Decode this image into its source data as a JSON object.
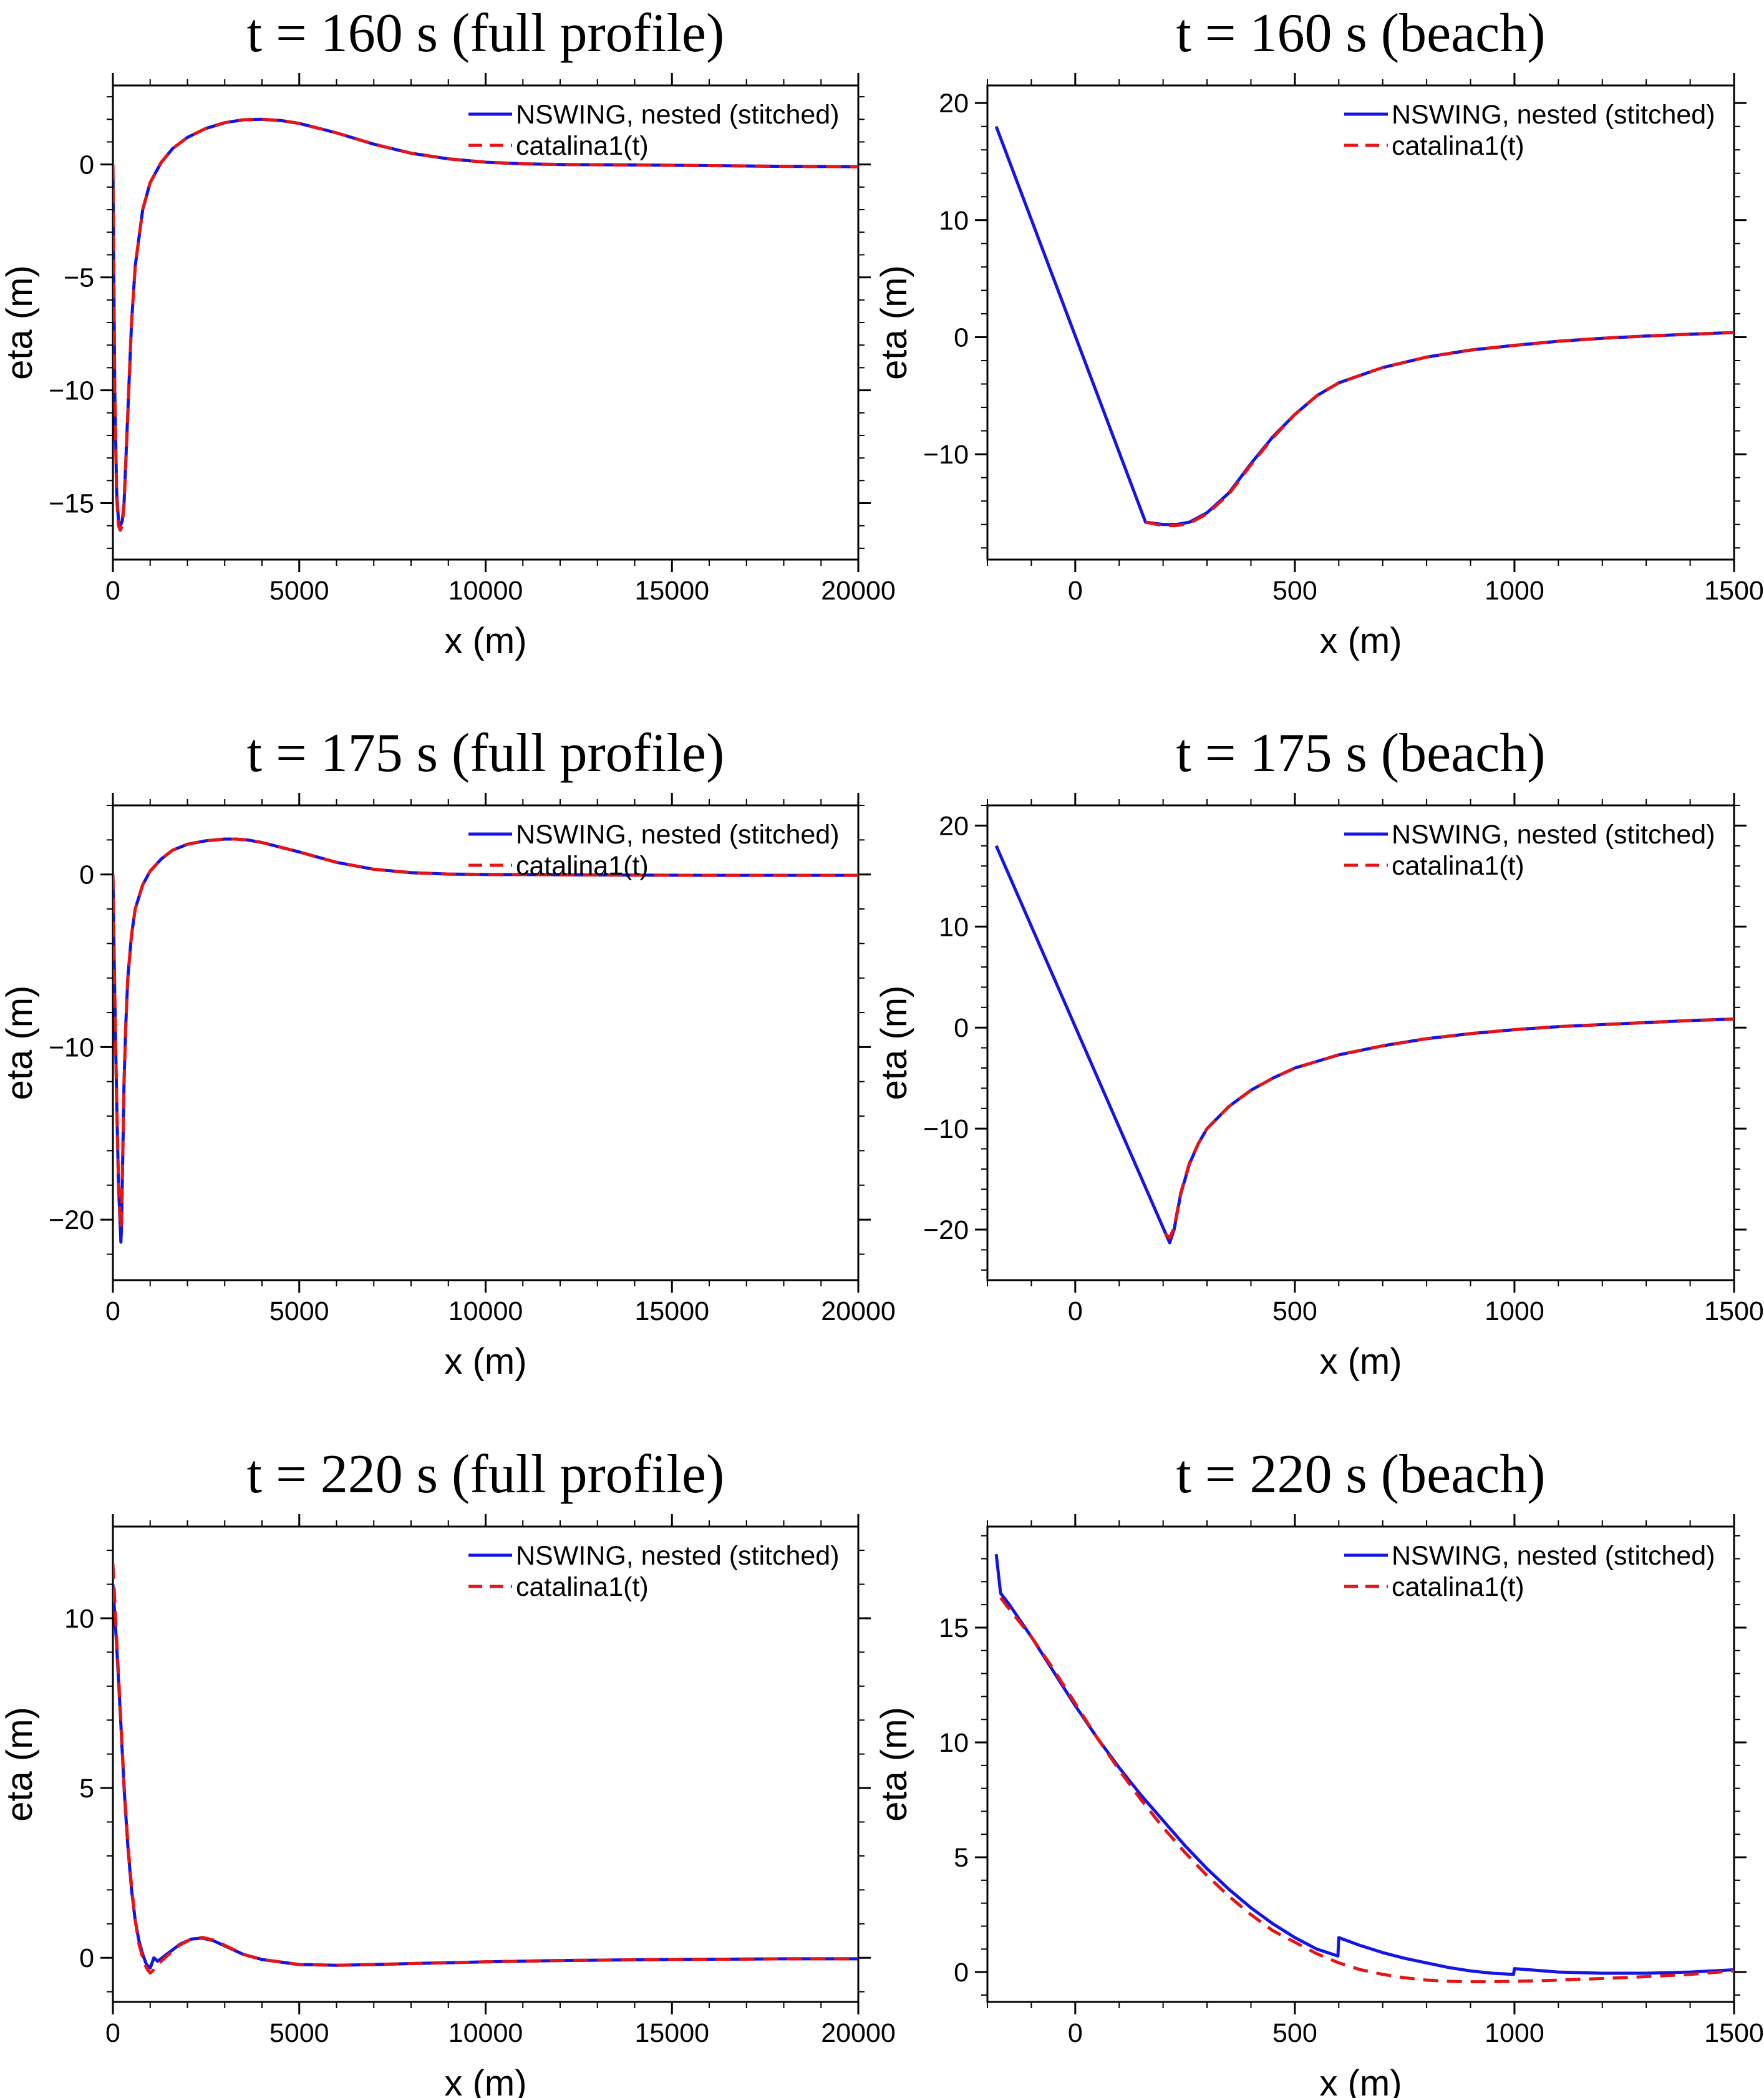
{
  "figure": {
    "rows": 3,
    "cols": 2
  },
  "colors": {
    "nswing": "#1414e6",
    "catalina": "#e61414",
    "axes": "#000000"
  },
  "chart_data": [
    {
      "type": "line",
      "title": "t = 160 s (full profile)",
      "xlabel": "x (m)",
      "ylabel": "eta (m)",
      "xlim": [
        0,
        20000
      ],
      "ylim": [
        -17.5,
        3.5
      ],
      "xticks": [
        0,
        5000,
        10000,
        15000,
        20000
      ],
      "xtick_labels": [
        "0",
        "5000",
        "10000",
        "15000",
        "20000"
      ],
      "xminor": 1000,
      "yticks": [
        0,
        -5,
        -10,
        -15
      ],
      "ytick_labels": [
        "0",
        "−5",
        "−10",
        "−15"
      ],
      "yminor": 1,
      "grid": false,
      "legend": "top-right",
      "series": [
        {
          "name": "NSWING, nested (stitched)",
          "style": "solid",
          "x": [
            0,
            50,
            100,
            150,
            200,
            250,
            300,
            400,
            500,
            600,
            800,
            1000,
            1300,
            1600,
            2000,
            2500,
            3000,
            3500,
            4000,
            4500,
            5000,
            6000,
            7000,
            8000,
            9000,
            10000,
            11000,
            12000,
            14000,
            16000,
            18000,
            20000
          ],
          "y": [
            0,
            -10,
            -14.5,
            -15.8,
            -16,
            -15.8,
            -15,
            -11,
            -7,
            -4.5,
            -2,
            -0.8,
            0.1,
            0.7,
            1.2,
            1.6,
            1.85,
            1.98,
            2.0,
            1.95,
            1.82,
            1.4,
            0.9,
            0.5,
            0.25,
            0.1,
            0.03,
            0,
            -0.02,
            -0.05,
            -0.08,
            -0.1
          ]
        },
        {
          "name": "catalina1(t)",
          "style": "dashed",
          "x": [
            0,
            50,
            100,
            150,
            200,
            250,
            300,
            400,
            500,
            600,
            800,
            1000,
            1300,
            1600,
            2000,
            2500,
            3000,
            3500,
            4000,
            4500,
            5000,
            6000,
            7000,
            8000,
            9000,
            10000,
            11000,
            12000,
            14000,
            16000,
            18000,
            20000
          ],
          "y": [
            0,
            -10.2,
            -14.7,
            -16,
            -16.2,
            -16,
            -15.1,
            -11.1,
            -7,
            -4.5,
            -2,
            -0.8,
            0.1,
            0.7,
            1.2,
            1.6,
            1.85,
            1.98,
            2.0,
            1.95,
            1.82,
            1.4,
            0.9,
            0.5,
            0.25,
            0.1,
            0.03,
            0,
            -0.02,
            -0.05,
            -0.08,
            -0.1
          ]
        }
      ]
    },
    {
      "type": "line",
      "title": "t = 160 s (beach)",
      "xlabel": "x (m)",
      "ylabel": "eta (m)",
      "xlim": [
        -200,
        1500
      ],
      "ylim": [
        -19,
        21.5
      ],
      "xticks": [
        0,
        500,
        1000,
        1500
      ],
      "xtick_labels": [
        "0",
        "500",
        "1000",
        "1500"
      ],
      "xminor": 100,
      "yticks": [
        20,
        10,
        0,
        -10
      ],
      "ytick_labels": [
        "20",
        "10",
        "0",
        "−10"
      ],
      "yminor": 2,
      "grid": false,
      "legend": "top-right",
      "series": [
        {
          "name": "NSWING, nested (stitched)",
          "style": "solid",
          "x": [
            -180,
            160,
            200,
            230,
            260,
            300,
            350,
            400,
            450,
            500,
            550,
            600,
            700,
            800,
            900,
            1000,
            1100,
            1200,
            1300,
            1400,
            1500
          ],
          "y": [
            18,
            -15.8,
            -16,
            -16,
            -15.8,
            -15,
            -13.3,
            -10.8,
            -8.5,
            -6.6,
            -5,
            -3.9,
            -2.6,
            -1.7,
            -1.1,
            -0.7,
            -0.35,
            -0.1,
            0.1,
            0.25,
            0.4
          ]
        },
        {
          "name": "catalina1(t)",
          "style": "dashed",
          "x": [
            160,
            200,
            230,
            260,
            300,
            350,
            400,
            450,
            500,
            550,
            600,
            700,
            800,
            900,
            1000,
            1100,
            1200,
            1300,
            1400,
            1500
          ],
          "y": [
            -15.8,
            -16.1,
            -16.1,
            -15.9,
            -15.1,
            -13.4,
            -10.9,
            -8.6,
            -6.6,
            -5,
            -3.9,
            -2.6,
            -1.7,
            -1.1,
            -0.7,
            -0.35,
            -0.1,
            0.1,
            0.25,
            0.4
          ]
        }
      ]
    },
    {
      "type": "line",
      "title": "t = 175 s (full profile)",
      "xlabel": "x (m)",
      "ylabel": "eta (m)",
      "xlim": [
        0,
        20000
      ],
      "ylim": [
        -23.5,
        4
      ],
      "xticks": [
        0,
        5000,
        10000,
        15000,
        20000
      ],
      "xtick_labels": [
        "0",
        "5000",
        "10000",
        "15000",
        "20000"
      ],
      "xminor": 1000,
      "yticks": [
        0,
        -10,
        -20
      ],
      "ytick_labels": [
        "0",
        "−10",
        "−20"
      ],
      "yminor": 2,
      "grid": false,
      "legend": "top-right",
      "series": [
        {
          "name": "NSWING, nested (stitched)",
          "style": "solid",
          "x": [
            0,
            50,
            100,
            150,
            200,
            215,
            230,
            260,
            300,
            350,
            400,
            500,
            600,
            800,
            1000,
            1300,
            1600,
            2000,
            2500,
            3000,
            3300,
            3600,
            4000,
            5000,
            6000,
            7000,
            8000,
            9000,
            10000,
            12000,
            14000,
            16000,
            18000,
            20000
          ],
          "y": [
            0,
            -7,
            -13,
            -18,
            -20.5,
            -21.3,
            -20.5,
            -17,
            -12,
            -8.5,
            -6,
            -3.5,
            -2,
            -0.6,
            0.2,
            0.9,
            1.4,
            1.75,
            1.95,
            2.05,
            2.05,
            2.0,
            1.85,
            1.3,
            0.7,
            0.3,
            0.1,
            0.02,
            0,
            -0.02,
            -0.04,
            -0.05,
            -0.05,
            -0.05
          ]
        },
        {
          "name": "catalina1(t)",
          "style": "dashed",
          "x": [
            0,
            50,
            100,
            150,
            200,
            215,
            230,
            260,
            300,
            350,
            400,
            500,
            600,
            800,
            1000,
            1300,
            1600,
            2000,
            2500,
            3000,
            3300,
            3600,
            4000,
            5000,
            6000,
            7000,
            8000,
            9000,
            10000,
            12000,
            14000,
            16000,
            18000,
            20000
          ],
          "y": [
            0,
            -7,
            -13,
            -18,
            -20,
            -20.5,
            -19.8,
            -16.8,
            -12,
            -8.5,
            -6,
            -3.5,
            -2,
            -0.6,
            0.2,
            0.9,
            1.4,
            1.75,
            1.95,
            2.05,
            2.05,
            2.0,
            1.85,
            1.3,
            0.7,
            0.3,
            0.1,
            0.02,
            0,
            -0.02,
            -0.04,
            -0.05,
            -0.05,
            -0.05
          ]
        }
      ]
    },
    {
      "type": "line",
      "title": "t = 175 s (beach)",
      "xlabel": "x (m)",
      "ylabel": "eta (m)",
      "xlim": [
        -200,
        1500
      ],
      "ylim": [
        -25,
        22
      ],
      "xticks": [
        0,
        500,
        1000,
        1500
      ],
      "xtick_labels": [
        "0",
        "500",
        "1000",
        "1500"
      ],
      "xminor": 100,
      "yticks": [
        20,
        10,
        0,
        -10,
        -20
      ],
      "ytick_labels": [
        "20",
        "10",
        "0",
        "−10",
        "−20"
      ],
      "yminor": 2,
      "grid": false,
      "legend": "top-right",
      "series": [
        {
          "name": "NSWING, nested (stitched)",
          "style": "solid",
          "x": [
            -180,
            215,
            225,
            240,
            260,
            280,
            300,
            350,
            400,
            450,
            500,
            600,
            700,
            800,
            900,
            1000,
            1100,
            1200,
            1300,
            1400,
            1500
          ],
          "y": [
            18,
            -21.3,
            -20,
            -16.5,
            -13.5,
            -11.5,
            -10,
            -7.8,
            -6.2,
            -5,
            -4,
            -2.7,
            -1.8,
            -1.1,
            -0.6,
            -0.2,
            0.1,
            0.3,
            0.5,
            0.7,
            0.85
          ]
        },
        {
          "name": "catalina1(t)",
          "style": "dashed",
          "x": [
            205,
            215,
            225,
            240,
            260,
            280,
            300,
            350,
            400,
            450,
            500,
            600,
            700,
            800,
            900,
            1000,
            1100,
            1200,
            1300,
            1400,
            1500
          ],
          "y": [
            -20.4,
            -20.8,
            -19.8,
            -16.4,
            -13.4,
            -11.5,
            -10,
            -7.8,
            -6.2,
            -5,
            -4,
            -2.7,
            -1.8,
            -1.1,
            -0.6,
            -0.2,
            0.1,
            0.3,
            0.5,
            0.7,
            0.85
          ]
        }
      ]
    },
    {
      "type": "line",
      "title": "t = 220 s (full profile)",
      "xlabel": "x (m)",
      "ylabel": "eta (m)",
      "xlim": [
        0,
        20000
      ],
      "ylim": [
        -1.3,
        12.7
      ],
      "xticks": [
        0,
        5000,
        10000,
        15000,
        20000
      ],
      "xtick_labels": [
        "0",
        "5000",
        "10000",
        "15000",
        "20000"
      ],
      "xminor": 1000,
      "yticks": [
        10,
        5,
        0
      ],
      "ytick_labels": [
        "10",
        "5",
        "0"
      ],
      "yminor": 1,
      "grid": false,
      "legend": "top-right",
      "series": [
        {
          "name": "NSWING, nested (stitched)",
          "style": "solid",
          "x": [
            0,
            100,
            200,
            300,
            400,
            500,
            600,
            700,
            800,
            900,
            1000,
            1100,
            1200,
            1500,
            1800,
            2100,
            2400,
            2700,
            3000,
            3500,
            4000,
            5000,
            6000,
            7000,
            8000,
            10000,
            12000,
            15000,
            18000,
            20000
          ],
          "y": [
            11,
            9.2,
            7.2,
            5,
            3.3,
            2,
            1.1,
            0.5,
            0.1,
            -0.2,
            -0.3,
            0,
            -0.1,
            0.15,
            0.4,
            0.55,
            0.58,
            0.5,
            0.35,
            0.1,
            -0.05,
            -0.2,
            -0.22,
            -0.2,
            -0.17,
            -0.12,
            -0.08,
            -0.05,
            -0.03,
            -0.03
          ]
        },
        {
          "name": "catalina1(t)",
          "style": "dashed",
          "x": [
            0,
            100,
            200,
            300,
            400,
            500,
            600,
            700,
            800,
            900,
            1000,
            1100,
            1200,
            1500,
            1800,
            2100,
            2400,
            2700,
            3000,
            3500,
            4000,
            5000,
            6000,
            7000,
            8000,
            10000,
            12000,
            15000,
            18000,
            20000
          ],
          "y": [
            11.6,
            9.4,
            7.3,
            5.1,
            3.4,
            2.1,
            1.1,
            0.4,
            0,
            -0.3,
            -0.45,
            -0.35,
            -0.2,
            0.1,
            0.38,
            0.55,
            0.6,
            0.52,
            0.37,
            0.1,
            -0.05,
            -0.2,
            -0.22,
            -0.2,
            -0.17,
            -0.12,
            -0.08,
            -0.05,
            -0.03,
            -0.03
          ]
        }
      ]
    },
    {
      "type": "line",
      "title": "t = 220 s (beach)",
      "xlabel": "x (m)",
      "ylabel": "eta (m)",
      "xlim": [
        -200,
        1500
      ],
      "ylim": [
        -1.3,
        19.4
      ],
      "xticks": [
        0,
        500,
        1000,
        1500
      ],
      "xtick_labels": [
        "0",
        "500",
        "1000",
        "1500"
      ],
      "xminor": 100,
      "yticks": [
        15,
        10,
        5,
        0
      ],
      "ytick_labels": [
        "15",
        "10",
        "5",
        "0"
      ],
      "yminor": 1,
      "grid": false,
      "legend": "top-right",
      "series": [
        {
          "name": "NSWING, nested (stitched)",
          "style": "solid",
          "x": [
            -180,
            -170,
            -150,
            -100,
            -50,
            0,
            50,
            100,
            150,
            200,
            250,
            300,
            350,
            400,
            450,
            500,
            550,
            598,
            600,
            650,
            700,
            750,
            800,
            850,
            900,
            950,
            998,
            1000,
            1100,
            1200,
            1300,
            1400,
            1500
          ],
          "y": [
            18.2,
            16.5,
            16,
            14.6,
            13.1,
            11.6,
            10.2,
            8.9,
            7.7,
            6.6,
            5.5,
            4.5,
            3.6,
            2.8,
            2.1,
            1.5,
            1.0,
            0.7,
            1.5,
            1.15,
            0.85,
            0.6,
            0.4,
            0.2,
            0.05,
            -0.05,
            -0.1,
            0.15,
            0.0,
            -0.05,
            -0.05,
            0,
            0.1
          ]
        },
        {
          "name": "catalina1(t)",
          "style": "dashed",
          "x": [
            -170,
            -150,
            -100,
            -50,
            0,
            50,
            100,
            150,
            200,
            250,
            300,
            350,
            400,
            450,
            500,
            550,
            600,
            650,
            700,
            750,
            800,
            850,
            900,
            950,
            1000,
            1050,
            1100,
            1200,
            1300,
            1400,
            1500
          ],
          "y": [
            16.3,
            15.8,
            14.6,
            13.2,
            11.7,
            10.2,
            8.8,
            7.5,
            6.3,
            5.2,
            4.2,
            3.3,
            2.5,
            1.8,
            1.3,
            0.8,
            0.4,
            0.1,
            -0.1,
            -0.25,
            -0.35,
            -0.4,
            -0.42,
            -0.42,
            -0.4,
            -0.38,
            -0.35,
            -0.28,
            -0.2,
            -0.1,
            0.05
          ]
        }
      ]
    }
  ]
}
